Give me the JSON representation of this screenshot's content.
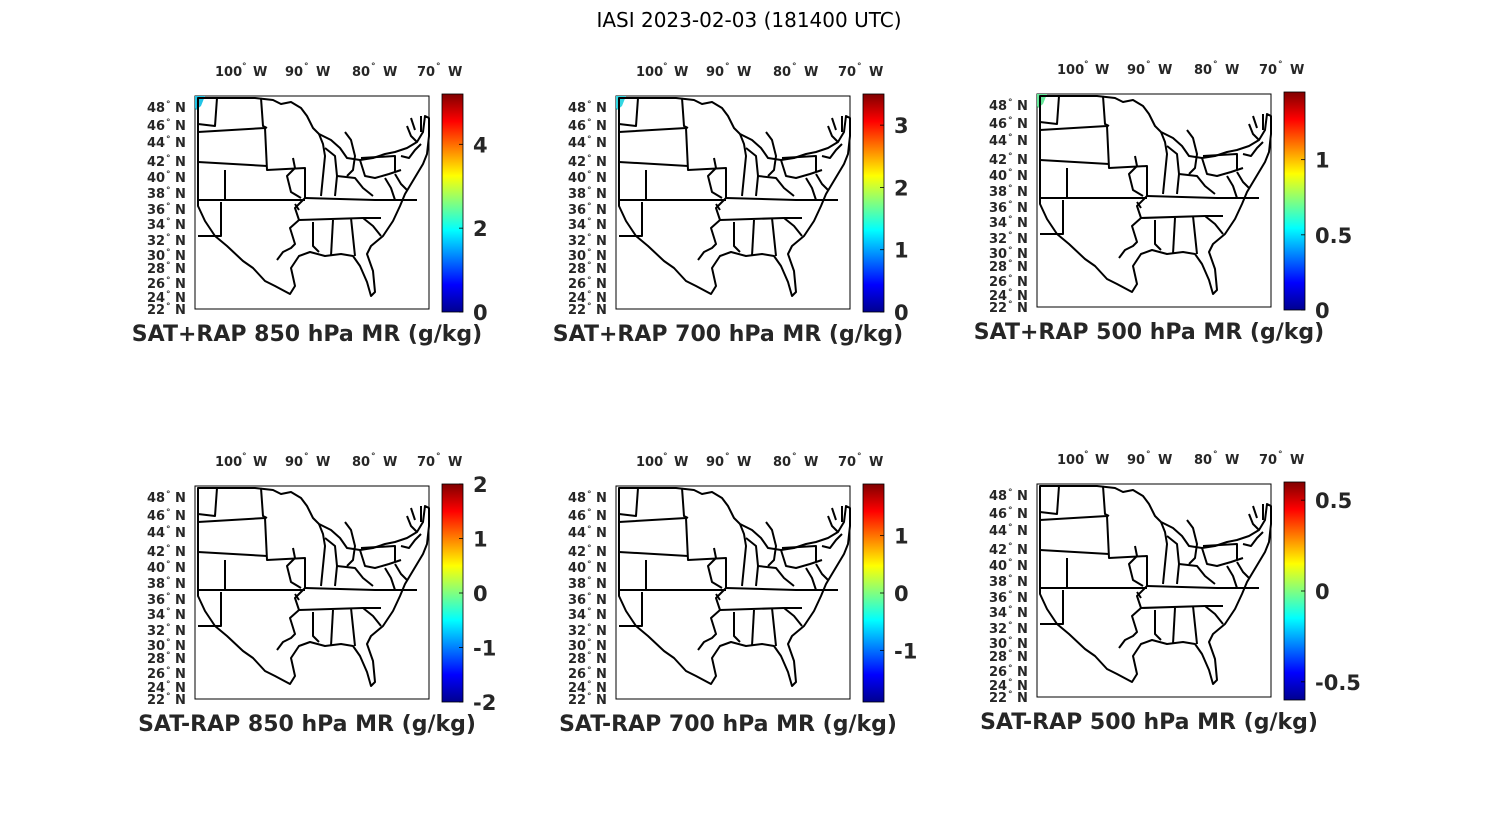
{
  "figure": {
    "title": "IASI 2023-02-03 (181400 UTC)"
  },
  "lon_ticks": [
    {
      "num": "100",
      "hem": "W"
    },
    {
      "num": "90",
      "hem": "W"
    },
    {
      "num": "80",
      "hem": "W"
    },
    {
      "num": "70",
      "hem": "W"
    }
  ],
  "lat_ticks": [
    {
      "num": "48",
      "hem": "N"
    },
    {
      "num": "46",
      "hem": "N"
    },
    {
      "num": "44",
      "hem": "N"
    },
    {
      "num": "42",
      "hem": "N"
    },
    {
      "num": "40",
      "hem": "N"
    },
    {
      "num": "38",
      "hem": "N"
    },
    {
      "num": "36",
      "hem": "N"
    },
    {
      "num": "34",
      "hem": "N"
    },
    {
      "num": "32",
      "hem": "N"
    },
    {
      "num": "30",
      "hem": "N"
    },
    {
      "num": "28",
      "hem": "N"
    },
    {
      "num": "26",
      "hem": "N"
    },
    {
      "num": "24",
      "hem": "N"
    },
    {
      "num": "22",
      "hem": "N"
    }
  ],
  "colormap": "jet",
  "chart_data": [
    {
      "type": "heatmap",
      "title": "SAT+RAP 850 hPa MR (g/kg)",
      "clim": [
        0,
        5.2
      ],
      "colorbar_ticks": [
        "0",
        "2",
        "4"
      ],
      "colorbar_values": [
        0,
        2,
        4
      ],
      "patch_color": "#22c4e6"
    },
    {
      "type": "heatmap",
      "title": "SAT+RAP 700 hPa MR (g/kg)",
      "clim": [
        0,
        3.5
      ],
      "colorbar_ticks": [
        "0",
        "1",
        "2",
        "3"
      ],
      "colorbar_values": [
        0,
        1,
        2,
        3
      ],
      "patch_color": "#33d6e2"
    },
    {
      "type": "heatmap",
      "title": "SAT+RAP 500 hPa MR (g/kg)",
      "clim": [
        0,
        1.45
      ],
      "colorbar_ticks": [
        "0",
        "0.5",
        "1"
      ],
      "colorbar_values": [
        0,
        0.5,
        1
      ],
      "patch_color": "#66e89a"
    },
    {
      "type": "heatmap",
      "title": "SAT-RAP 850 hPa MR (g/kg)",
      "clim": [
        -2,
        2
      ],
      "colorbar_ticks": [
        "-2",
        "-1",
        "0",
        "1",
        "2"
      ],
      "colorbar_values": [
        -2,
        -1,
        0,
        1,
        2
      ]
    },
    {
      "type": "heatmap",
      "title": "SAT-RAP 700 hPa MR (g/kg)",
      "clim": [
        -1.9,
        1.9
      ],
      "colorbar_ticks": [
        "-1",
        "0",
        "1"
      ],
      "colorbar_values": [
        -1,
        0,
        1
      ]
    },
    {
      "type": "heatmap",
      "title": "SAT-RAP 500 hPa MR (g/kg)",
      "clim": [
        -0.6,
        0.6
      ],
      "colorbar_ticks": [
        "-0.5",
        "0",
        "0.5"
      ],
      "colorbar_values": [
        -0.5,
        0,
        0.5
      ]
    }
  ]
}
